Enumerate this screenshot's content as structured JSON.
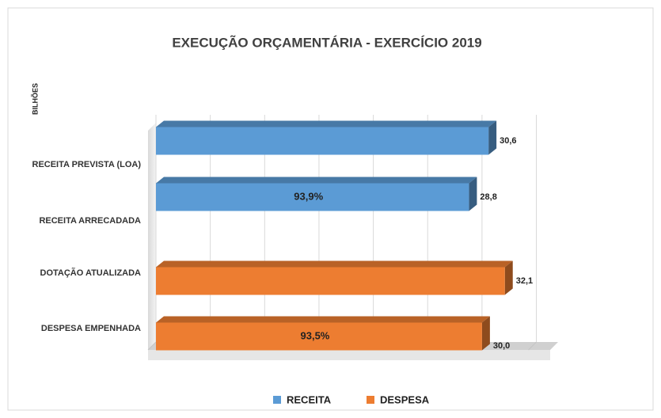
{
  "chart_data": {
    "type": "bar3d-horizontal",
    "title": "EXECUÇÃO ORÇAMENTÁRIA  - EXERCÍCIO 2019",
    "y_axis_label": "BILHÕES",
    "categories": [
      "RECEITA PREVISTA (LOA)",
      "RECEITA ARRECADADA",
      "DOTAÇÃO ATUALIZADA",
      "DESPESA EMPENHADA"
    ],
    "series": [
      {
        "name": "RECEITA",
        "color": "#5b9bd5",
        "values": [
          30.6,
          28.8,
          null,
          null
        ],
        "value_labels": [
          "30,6",
          "28,8",
          null,
          null
        ]
      },
      {
        "name": "DESPESA",
        "color": "#ed7d31",
        "values": [
          null,
          null,
          32.1,
          30.0
        ],
        "value_labels": [
          null,
          null,
          "32,1",
          "30,0"
        ]
      }
    ],
    "annotations": [
      "93,9%",
      "93,5%"
    ],
    "xlim": [
      0,
      35
    ],
    "xticks": [
      0,
      5,
      10,
      15,
      20,
      25,
      30,
      35
    ],
    "grid": true,
    "legend": "bottom"
  }
}
